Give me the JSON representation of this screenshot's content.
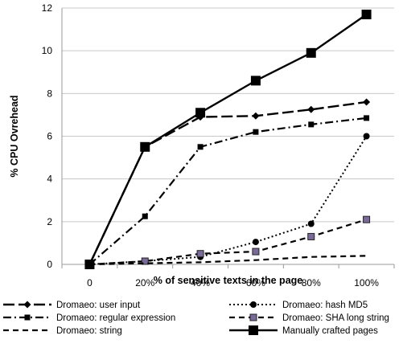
{
  "chart_data": {
    "type": "line",
    "title": "",
    "xlabel": "% of sensitive texts in the page",
    "ylabel": "% CPU Ovrehead",
    "categories": [
      "0",
      "20%",
      "40%",
      "60%",
      "80%",
      "100%"
    ],
    "ylim": [
      0,
      12
    ],
    "yticks": [
      "0",
      "2",
      "4",
      "6",
      "8",
      "10",
      "12"
    ],
    "grid": "horizontal",
    "legend_position": "bottom",
    "series": [
      {
        "name": "Dromaeo: user input",
        "values": [
          0,
          5.5,
          6.9,
          6.95,
          7.25,
          7.6
        ],
        "style": "long-dash",
        "marker": "diamond",
        "color": "#000000"
      },
      {
        "name": "Dromaeo: hash MD5",
        "values": [
          0,
          0.15,
          0.35,
          1.05,
          1.9,
          6.0
        ],
        "style": "dotted",
        "marker": "circle",
        "color": "#000000"
      },
      {
        "name": "Dromaeo: regular expression",
        "values": [
          0,
          2.25,
          5.5,
          6.2,
          6.55,
          6.85
        ],
        "style": "dash-dot",
        "marker": "square",
        "color": "#000000"
      },
      {
        "name": "Dromaeo: SHA long string",
        "values": [
          0,
          0.15,
          0.5,
          0.6,
          1.3,
          2.1
        ],
        "style": "dashed",
        "marker": "square-purple",
        "color": "#5a4a7a"
      },
      {
        "name": "Dromaeo: string",
        "values": [
          0,
          0.05,
          0.1,
          0.2,
          0.35,
          0.4
        ],
        "style": "dashed",
        "marker": "none",
        "color": "#000000"
      },
      {
        "name": "Manually crafted pages",
        "values": [
          0,
          5.5,
          7.1,
          8.6,
          9.9,
          11.7
        ],
        "style": "solid",
        "marker": "square-large",
        "color": "#000000"
      }
    ]
  }
}
